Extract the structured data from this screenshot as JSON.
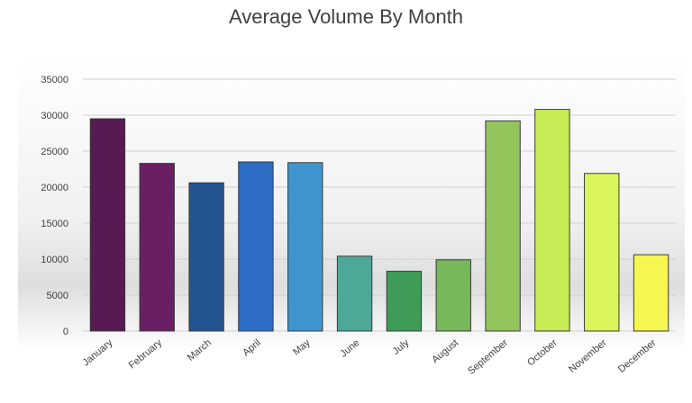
{
  "chart_data": {
    "type": "bar",
    "title": "Average Volume By Month",
    "xlabel": "",
    "ylabel": "",
    "ylim": [
      0,
      35000
    ],
    "yticks": [
      0,
      5000,
      10000,
      15000,
      20000,
      25000,
      30000,
      35000
    ],
    "ytick_labels": [
      "0",
      "5000",
      "10000",
      "15000",
      "20000",
      "25000",
      "30000",
      "35000"
    ],
    "grid": true,
    "legend": "none",
    "categories": [
      "January",
      "February",
      "March",
      "April",
      "May",
      "June",
      "July",
      "August",
      "September",
      "October",
      "November",
      "December"
    ],
    "values": [
      29500,
      23300,
      20600,
      23500,
      23400,
      10400,
      8300,
      9900,
      29200,
      30800,
      21900,
      10600
    ],
    "colors": [
      "#571a52",
      "#6a1f64",
      "#23548f",
      "#2e6dc5",
      "#4095cf",
      "#4ea897",
      "#3f9c58",
      "#77b85a",
      "#94c45c",
      "#c6ec56",
      "#d9f55a",
      "#f6f651"
    ]
  }
}
